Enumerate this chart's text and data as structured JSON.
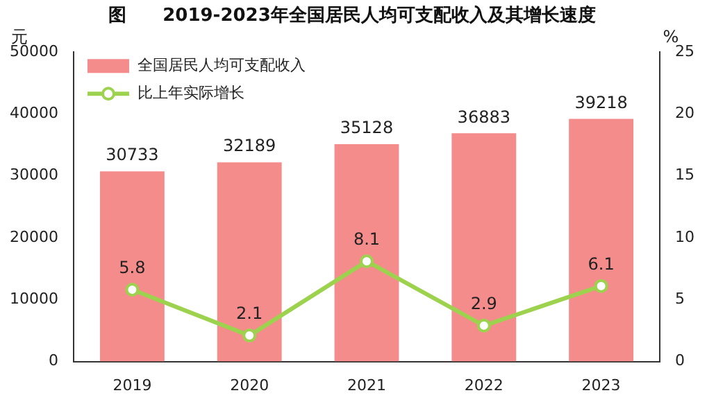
{
  "chart_data": {
    "type": "bar",
    "title": "图　　2019-2023年全国居民人均可支配收入及其增长速度",
    "ylabel": "元",
    "y2label": "%",
    "categories": [
      "2019",
      "2020",
      "2021",
      "2022",
      "2023"
    ],
    "series": [
      {
        "name": "全国居民人均可支配收入",
        "color": "#f48c8c",
        "values": [
          30733,
          32189,
          35128,
          36883,
          39218
        ]
      },
      {
        "name": "比上年实际增长",
        "type": "line",
        "axis": "y2",
        "color": "#9dd24e",
        "values": [
          5.8,
          2.1,
          8.1,
          2.9,
          6.1
        ]
      }
    ],
    "ylim": [
      0,
      50000
    ],
    "yticks": [
      0,
      10000,
      20000,
      30000,
      40000,
      50000
    ],
    "y2lim": [
      0,
      25
    ],
    "y2ticks": [
      0,
      5,
      10,
      15,
      20,
      25
    ],
    "data_labels": true,
    "legend": "top left",
    "grid": false,
    "marker": "circle",
    "line_style": "solid"
  }
}
